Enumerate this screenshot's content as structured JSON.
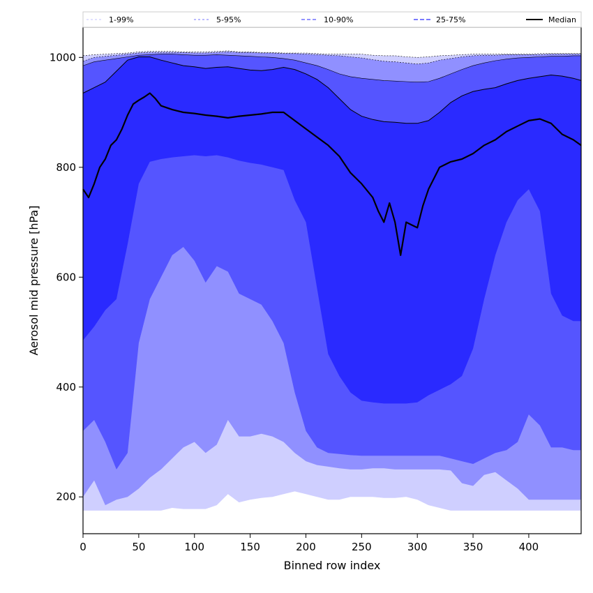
{
  "chart_data": {
    "type": "area",
    "xlabel": "Binned row index",
    "ylabel": "Aerosol mid pressure [hPa]",
    "xlim": [
      0,
      447
    ],
    "ylim": [
      133,
      1055
    ],
    "xticks": [
      0,
      50,
      100,
      150,
      200,
      250,
      300,
      350,
      400
    ],
    "yticks": [
      200,
      400,
      600,
      800,
      1000
    ],
    "legend_position": "top (above plot, horizontal)",
    "grid": false,
    "x": [
      0,
      10,
      20,
      30,
      40,
      50,
      60,
      70,
      80,
      90,
      100,
      110,
      120,
      130,
      140,
      150,
      160,
      170,
      180,
      190,
      200,
      210,
      220,
      230,
      240,
      250,
      260,
      270,
      280,
      290,
      300,
      310,
      320,
      330,
      340,
      350,
      360,
      370,
      380,
      390,
      400,
      410,
      420,
      430,
      440,
      447
    ],
    "bands": [
      {
        "name": "1-99%",
        "color": "#cfcfff",
        "lower": [
          175,
          175,
          175,
          175,
          175,
          175,
          175,
          175,
          180,
          178,
          178,
          178,
          185,
          205,
          190,
          195,
          198,
          200,
          205,
          210,
          205,
          200,
          195,
          195,
          200,
          200,
          200,
          198,
          198,
          200,
          195,
          185,
          180,
          175,
          175,
          175,
          175,
          175,
          175,
          175,
          175,
          175,
          175,
          175,
          175,
          175
        ],
        "upper": [
          1003,
          1005,
          1006,
          1007,
          1008,
          1010,
          1011,
          1011,
          1011,
          1010,
          1010,
          1010,
          1011,
          1012,
          1010,
          1010,
          1009,
          1009,
          1008,
          1008,
          1008,
          1007,
          1006,
          1006,
          1006,
          1006,
          1004,
          1003,
          1003,
          1001,
          1000,
          1001,
          1003,
          1004,
          1005,
          1006,
          1006,
          1006,
          1006,
          1006,
          1006,
          1007,
          1007,
          1007,
          1007,
          1007
        ]
      },
      {
        "name": "5-95%",
        "color": "#9090ff",
        "lower": [
          200,
          230,
          185,
          195,
          200,
          215,
          235,
          250,
          270,
          290,
          300,
          280,
          295,
          340,
          310,
          310,
          315,
          310,
          300,
          280,
          265,
          258,
          255,
          252,
          250,
          250,
          252,
          252,
          250,
          250,
          250,
          250,
          250,
          248,
          225,
          220,
          240,
          245,
          230,
          215,
          195,
          195,
          195,
          195,
          195,
          195
        ],
        "upper": [
          993,
          1000,
          1002,
          1004,
          1006,
          1008,
          1009,
          1009,
          1009,
          1009,
          1008,
          1008,
          1009,
          1010,
          1009,
          1009,
          1008,
          1008,
          1007,
          1007,
          1006,
          1005,
          1004,
          1003,
          1001,
          999,
          996,
          993,
          992,
          990,
          988,
          990,
          995,
          998,
          1001,
          1003,
          1004,
          1004,
          1005,
          1005,
          1005,
          1005,
          1006,
          1006,
          1006,
          1006
        ]
      },
      {
        "name": "10-90%",
        "color": "#5555ff",
        "lower": [
          320,
          340,
          300,
          250,
          280,
          480,
          560,
          600,
          640,
          655,
          630,
          590,
          620,
          610,
          570,
          560,
          550,
          520,
          480,
          390,
          320,
          290,
          280,
          278,
          276,
          275,
          275,
          275,
          275,
          275,
          275,
          275,
          275,
          270,
          265,
          260,
          270,
          280,
          285,
          300,
          350,
          330,
          290,
          290,
          285,
          285
        ],
        "upper": [
          985,
          992,
          995,
          998,
          1001,
          1004,
          1005,
          1006,
          1006,
          1005,
          1004,
          1004,
          1005,
          1004,
          1003,
          1002,
          1001,
          1000,
          998,
          995,
          990,
          985,
          978,
          970,
          965,
          962,
          960,
          958,
          957,
          956,
          955,
          956,
          962,
          970,
          978,
          985,
          990,
          994,
          997,
          999,
          1000,
          1001,
          1002,
          1002,
          1003,
          1003
        ]
      },
      {
        "name": "25-75%",
        "color": "#2a2aff",
        "lower": [
          485,
          510,
          540,
          560,
          660,
          770,
          810,
          815,
          818,
          820,
          822,
          820,
          822,
          818,
          812,
          808,
          805,
          800,
          795,
          740,
          700,
          580,
          460,
          420,
          390,
          375,
          372,
          370,
          370,
          370,
          372,
          385,
          395,
          405,
          420,
          470,
          560,
          640,
          700,
          740,
          760,
          720,
          570,
          530,
          520,
          520
        ],
        "upper": [
          935,
          945,
          955,
          975,
          995,
          1001,
          1001,
          995,
          990,
          985,
          983,
          980,
          982,
          983,
          980,
          977,
          976,
          978,
          982,
          978,
          970,
          960,
          945,
          925,
          905,
          893,
          887,
          883,
          882,
          880,
          880,
          885,
          900,
          918,
          930,
          938,
          942,
          945,
          952,
          958,
          962,
          965,
          968,
          966,
          962,
          958
        ]
      }
    ],
    "median": {
      "name": "Median",
      "color": "#000000",
      "x": [
        0,
        5,
        10,
        15,
        20,
        25,
        30,
        35,
        40,
        45,
        50,
        55,
        60,
        65,
        70,
        80,
        90,
        100,
        110,
        120,
        130,
        140,
        150,
        160,
        170,
        180,
        190,
        200,
        210,
        220,
        230,
        240,
        250,
        260,
        265,
        270,
        275,
        280,
        285,
        290,
        295,
        300,
        305,
        310,
        320,
        330,
        340,
        350,
        360,
        370,
        380,
        390,
        400,
        410,
        420,
        430,
        440,
        447
      ],
      "y": [
        760,
        745,
        770,
        800,
        815,
        840,
        850,
        870,
        895,
        915,
        922,
        928,
        935,
        925,
        912,
        905,
        900,
        898,
        895,
        893,
        890,
        893,
        895,
        897,
        900,
        900,
        885,
        870,
        855,
        840,
        820,
        790,
        770,
        745,
        720,
        700,
        735,
        700,
        640,
        700,
        695,
        690,
        730,
        760,
        800,
        810,
        815,
        825,
        840,
        850,
        865,
        875,
        885,
        888,
        880,
        860,
        850,
        840
      ]
    },
    "median_boundary_lines": {
      "lower_25": "dashed, thin black (upper edge of 25-75% band)",
      "note": "thin black lines trace the upper edges of the shaded bands"
    },
    "legend": [
      "1-99%",
      "5-95%",
      "10-90%",
      "25-75%",
      "Median"
    ],
    "legend_styles": [
      {
        "label": "1-99%",
        "color": "#cfcfff",
        "dash": "3,3"
      },
      {
        "label": "5-95%",
        "color": "#9090ff",
        "dash": "3,3"
      },
      {
        "label": "10-90%",
        "color": "#5555ff",
        "dash": "5,3"
      },
      {
        "label": "25-75%",
        "color": "#2a2aff",
        "dash": "6,3"
      },
      {
        "label": "Median",
        "color": "#000000",
        "dash": ""
      }
    ]
  }
}
